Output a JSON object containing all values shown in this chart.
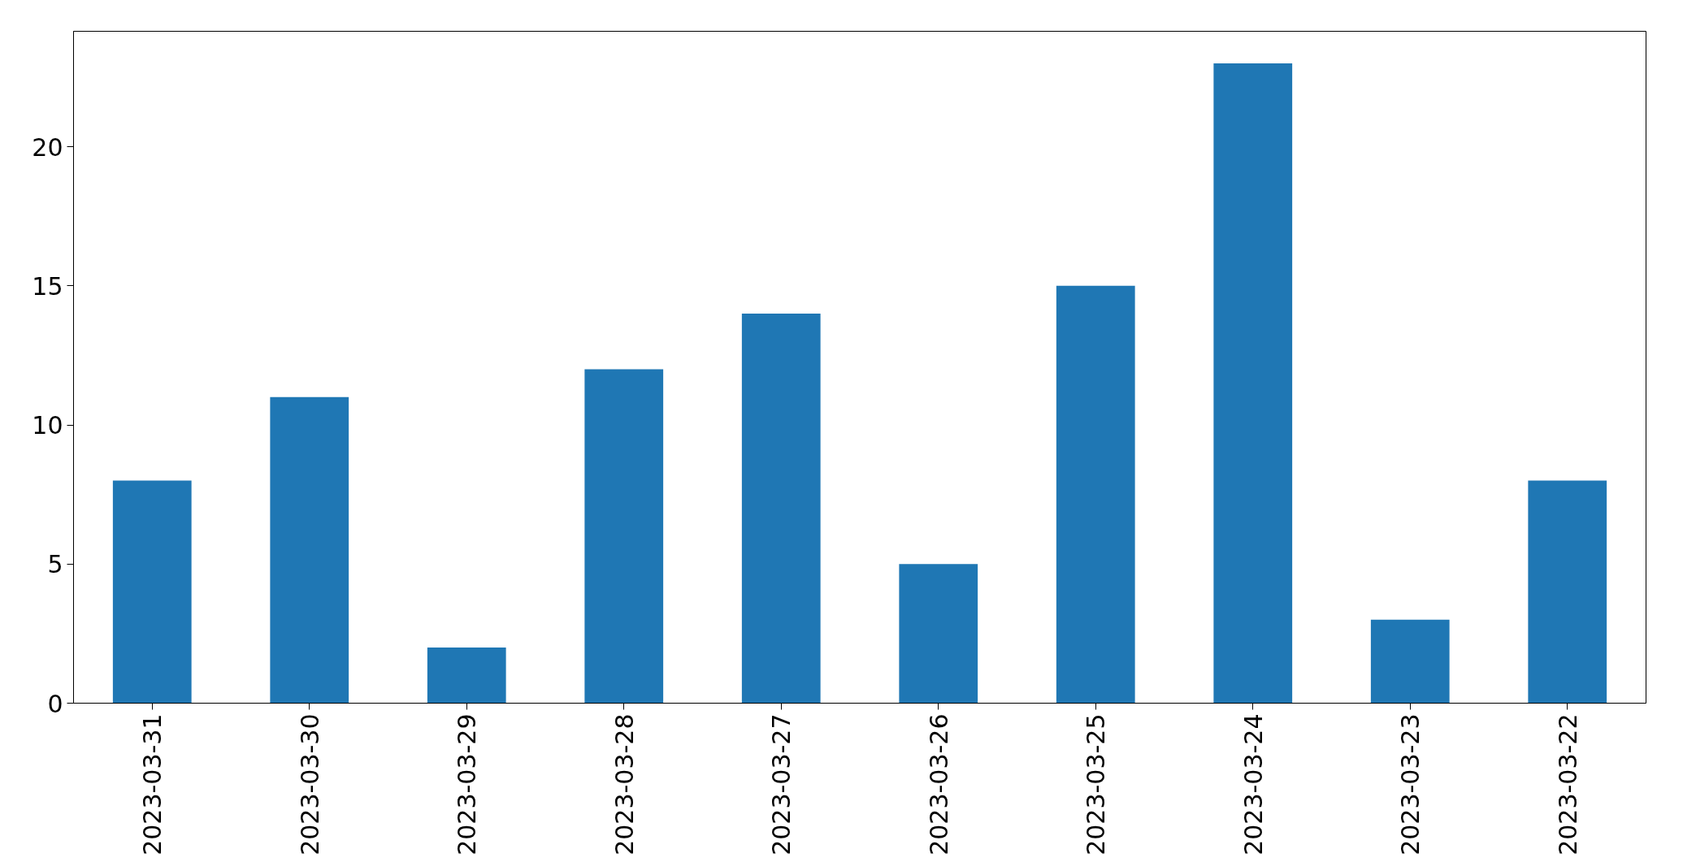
{
  "chart_data": {
    "type": "bar",
    "categories": [
      "2023-03-31",
      "2023-03-30",
      "2023-03-29",
      "2023-03-28",
      "2023-03-27",
      "2023-03-26",
      "2023-03-25",
      "2023-03-24",
      "2023-03-23",
      "2023-03-22"
    ],
    "values": [
      8,
      11,
      2,
      12,
      14,
      5,
      15,
      23,
      3,
      8
    ],
    "color": "#1f77b4",
    "ylim": [
      0,
      24.15
    ],
    "yticks": [
      0,
      5,
      10,
      15,
      20
    ],
    "grid": false
  }
}
